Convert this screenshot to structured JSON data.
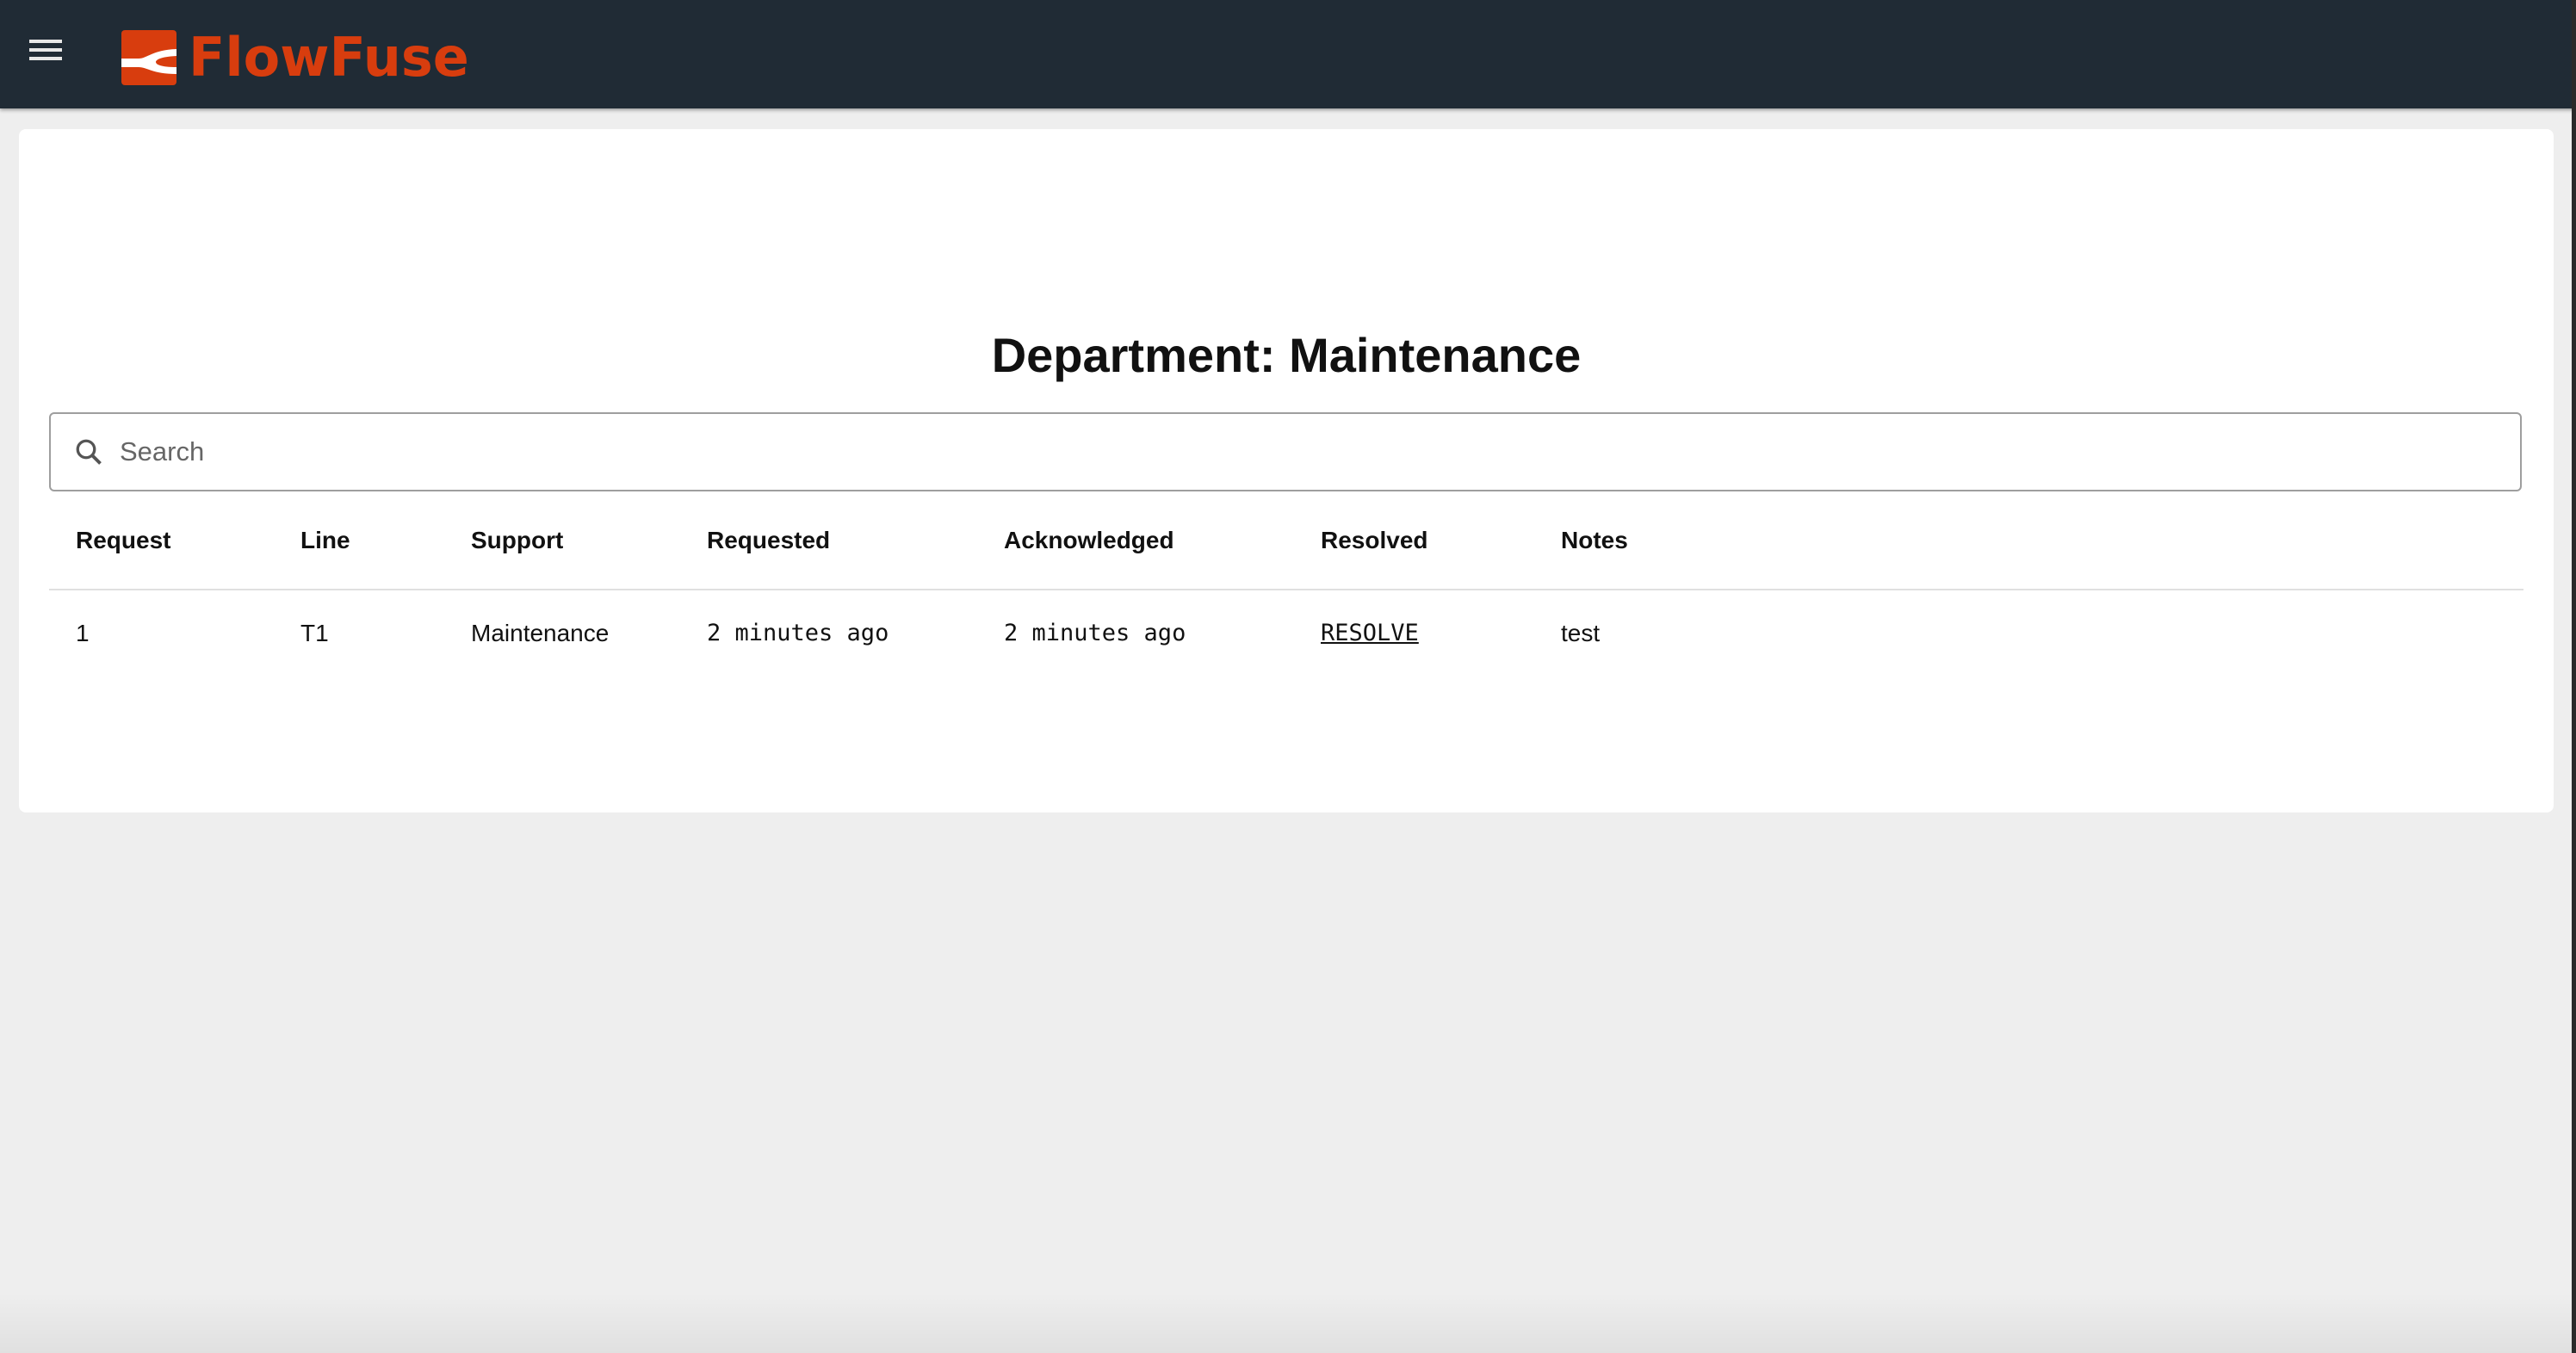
{
  "header": {
    "brand": "FlowFuse",
    "menu_icon": "hamburger-icon",
    "brand_color": "#d83d0e",
    "bar_color": "#202b35"
  },
  "page": {
    "title": "Department: Maintenance"
  },
  "search": {
    "placeholder": "Search",
    "value": ""
  },
  "table": {
    "columns": [
      "Request",
      "Line",
      "Support",
      "Requested",
      "Acknowledged",
      "Resolved",
      "Notes"
    ],
    "rows": [
      {
        "request": "1",
        "line": "T1",
        "support": "Maintenance",
        "requested": "2 minutes ago",
        "acknowledged": "2 minutes ago",
        "resolved": "RESOLVE",
        "notes": "test"
      }
    ]
  }
}
